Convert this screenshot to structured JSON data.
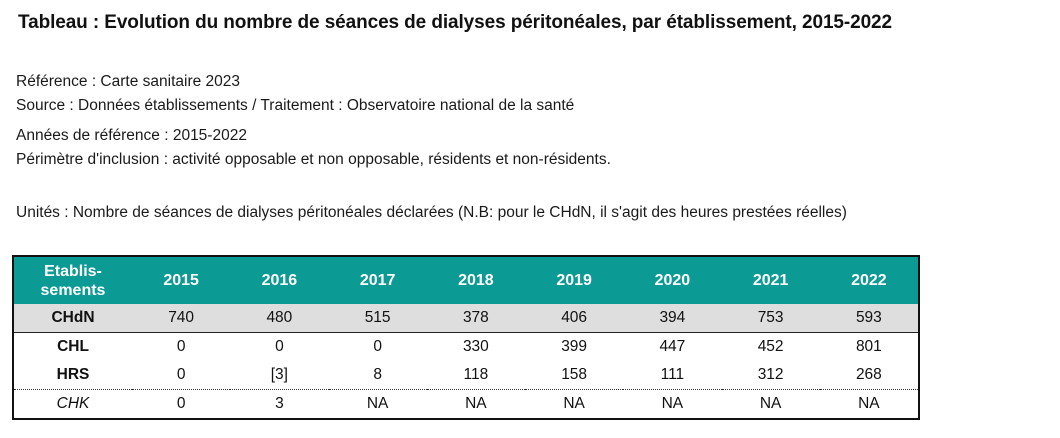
{
  "title": "Tableau : Evolution du nombre de séances de dialyses péritonéales, par établissement, 2015-2022",
  "meta": {
    "reference": "Référence : Carte sanitaire 2023",
    "source": "Source : Données établissements / Traitement : Observatoire national de la santé",
    "years": "Années de référence : 2015-2022",
    "perimeter": "Périmètre d'inclusion : activité opposable et non opposable, résidents et non-résidents.",
    "units": "Unités : Nombre de séances de dialyses péritonéales déclarées (N.B: pour le CHdN, il s'agit des heures prestées réelles)"
  },
  "table": {
    "header_color": "#0b9a94",
    "headers": [
      "Etablis-sements",
      "2015",
      "2016",
      "2017",
      "2018",
      "2019",
      "2020",
      "2021",
      "2022"
    ],
    "rows": [
      {
        "name": "CHdN",
        "values": [
          "740",
          "480",
          "515",
          "378",
          "406",
          "394",
          "753",
          "593"
        ]
      },
      {
        "name": "CHL",
        "values": [
          "0",
          "0",
          "0",
          "330",
          "399",
          "447",
          "452",
          "801"
        ]
      },
      {
        "name": "HRS",
        "values": [
          "0",
          "[3]",
          "8",
          "118",
          "158",
          "111",
          "312",
          "268"
        ]
      },
      {
        "name": "CHK",
        "values": [
          "0",
          "3",
          "NA",
          "NA",
          "NA",
          "NA",
          "NA",
          "NA"
        ]
      }
    ]
  }
}
